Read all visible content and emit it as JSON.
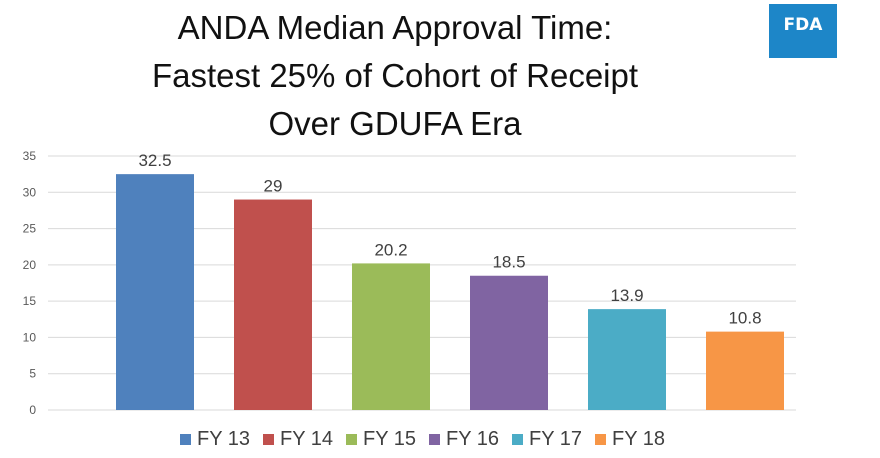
{
  "header": {
    "title_lines": [
      "ANDA Median Approval Time:",
      "Fastest 25% of Cohort of Receipt",
      "Over GDUFA Era"
    ],
    "logo_text": "FDA"
  },
  "colors": {
    "logo_bg": "#1d86c8",
    "grid": "#d9d9d9"
  },
  "chart_data": {
    "type": "bar",
    "title": "ANDA Median Approval Time: Fastest 25% of Cohort of Receipt Over GDUFA Era",
    "xlabel": "",
    "ylabel": "",
    "categories": [
      "FY 13",
      "FY 14",
      "FY 15",
      "FY 16",
      "FY 17",
      "FY 18"
    ],
    "series": [
      {
        "name": "FY 13",
        "value": 32.5,
        "label": "32.5",
        "color": "#4f81bd"
      },
      {
        "name": "FY 14",
        "value": 29,
        "label": "29",
        "color": "#c0504d"
      },
      {
        "name": "FY 15",
        "value": 20.2,
        "label": "20.2",
        "color": "#9bbb59"
      },
      {
        "name": "FY 16",
        "value": 18.5,
        "label": "18.5",
        "color": "#8064a2"
      },
      {
        "name": "FY 17",
        "value": 13.9,
        "label": "13.9",
        "color": "#4bacc6"
      },
      {
        "name": "FY 18",
        "value": 10.8,
        "label": "10.8",
        "color": "#f79646"
      }
    ],
    "ylim": [
      0,
      35
    ],
    "yticks": [
      "0",
      "5",
      "10",
      "15",
      "20",
      "25",
      "30",
      "35"
    ],
    "grid": true,
    "legend": "bottom"
  }
}
